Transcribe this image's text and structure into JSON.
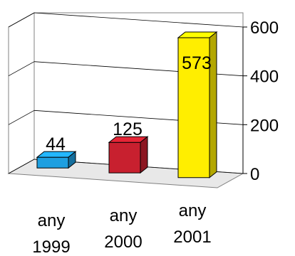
{
  "chart_data": {
    "type": "bar",
    "style": "3d-column",
    "title": "",
    "xlabel": "",
    "ylabel": "",
    "categories": [
      [
        "any",
        "1999"
      ],
      [
        "any",
        "2000"
      ],
      [
        "any",
        "2001"
      ]
    ],
    "values": [
      44,
      125,
      573
    ],
    "data_labels": [
      "44",
      "125",
      "573"
    ],
    "bar_colors": [
      "#1e9fe0",
      "#c8202f",
      "#ffee00"
    ],
    "ylim": [
      0,
      600
    ],
    "yticks": [
      0,
      200,
      400,
      600
    ],
    "ytick_labels": [
      "0",
      "200",
      "400",
      "600"
    ],
    "grid": true,
    "legend": "none"
  }
}
